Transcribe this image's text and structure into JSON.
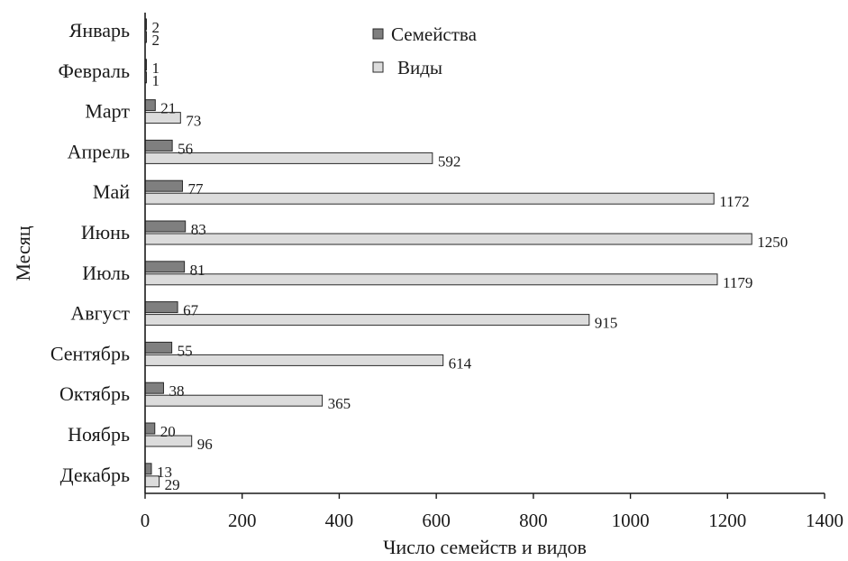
{
  "chart_data": {
    "type": "bar",
    "orientation": "horizontal",
    "categories": [
      "Январь",
      "Февраль",
      "Март",
      "Апрель",
      "Май",
      "Июнь",
      "Июль",
      "Август",
      "Сентябрь",
      "Октябрь",
      "Ноябрь",
      "Декабрь"
    ],
    "series": [
      {
        "name": "Семейства",
        "color": "#7f7f7f",
        "values": [
          2,
          1,
          21,
          56,
          77,
          83,
          81,
          67,
          55,
          38,
          20,
          13
        ]
      },
      {
        "name": "Виды",
        "color": "#dcdcdc",
        "values": [
          2,
          1,
          73,
          592,
          1172,
          1250,
          1179,
          915,
          614,
          365,
          96,
          29
        ]
      }
    ],
    "xlabel": "Число  семейств и видов",
    "ylabel": "Месяц",
    "xlim": [
      0,
      1400
    ],
    "xticks": [
      "0",
      "200",
      "400",
      "600",
      "800",
      "1000",
      "1200",
      "1400"
    ],
    "grid": false,
    "legend_position": "top-center"
  }
}
